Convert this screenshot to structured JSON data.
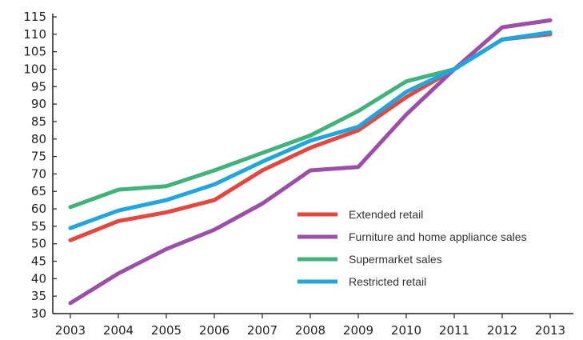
{
  "chart_data": {
    "type": "line",
    "title": "",
    "xlabel": "",
    "ylabel": "",
    "x": [
      "2003",
      "2004",
      "2005",
      "2006",
      "2007",
      "2008",
      "2009",
      "2010",
      "2011",
      "2012",
      "2013"
    ],
    "y_ticks": [
      30,
      35,
      40,
      45,
      50,
      55,
      60,
      65,
      70,
      75,
      80,
      85,
      90,
      95,
      100,
      105,
      110,
      115
    ],
    "ylim": [
      30,
      115
    ],
    "grid": false,
    "legend_position": "center-right",
    "series": [
      {
        "name": "Extended retail",
        "color": "#e8453c",
        "values": [
          51,
          56.5,
          59,
          62.5,
          71,
          77.5,
          82.5,
          92,
          100,
          108.5,
          110
        ]
      },
      {
        "name": "Furniture and home appliance sales",
        "color": "#9b4fa8",
        "values": [
          33,
          41.5,
          48.5,
          54,
          61.5,
          71,
          72,
          87,
          100,
          112,
          114
        ]
      },
      {
        "name": "Supermarket sales",
        "color": "#3fb37a",
        "values": [
          60.5,
          65.5,
          66.5,
          71,
          76,
          81,
          88,
          96.5,
          100,
          108.5,
          110.5
        ]
      },
      {
        "name": "Restricted retail",
        "color": "#1ea6de",
        "values": [
          54.5,
          59.5,
          62.5,
          67,
          73.5,
          79.5,
          83.5,
          93.5,
          100,
          108.5,
          110.5
        ]
      }
    ]
  }
}
